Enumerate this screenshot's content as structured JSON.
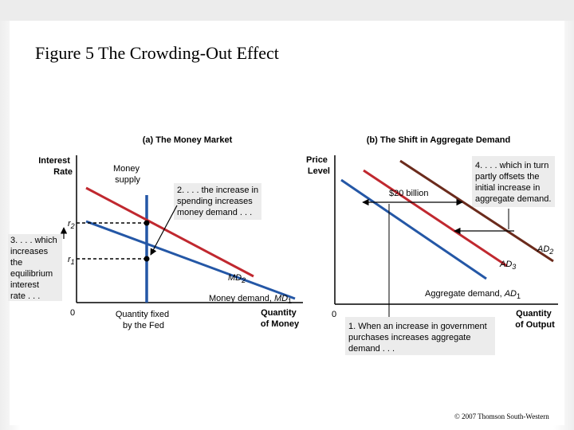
{
  "title": "Figure 5 The Crowding-Out Effect",
  "copyright": "© 2007 Thomson South-Western",
  "colors": {
    "red": "#c0282f",
    "blue": "#2457a6",
    "brown": "#6b2b1c",
    "box": "#ececec"
  },
  "chart_data": [
    {
      "type": "line",
      "title": "(a) The Money Market",
      "ylabel": "Interest Rate",
      "xlabel": "Quantity of Money",
      "origin_label": "0",
      "ytick_labels": [
        "r",
        "2",
        "r",
        "1"
      ],
      "money_supply_label": "Money supply",
      "quantity_fixed_label": "Quantity fixed by the Fed",
      "curves": [
        {
          "name": "MD",
          "sub": "2",
          "color_key": "red"
        },
        {
          "name": "Money demand, MD",
          "sub": "1",
          "color_key": "blue"
        }
      ],
      "annotations": [
        "2. . . . the increase in spending increases money demand . . .",
        "3. . . . which increases the equilibrium interest rate . . ."
      ]
    },
    {
      "type": "line",
      "title": "(b) The Shift in Aggregate Demand",
      "ylabel": "Price Level",
      "xlabel": "Quantity of Output",
      "origin_label": "0",
      "curves": [
        {
          "name": "AD",
          "sub": "2",
          "color_key": "brown"
        },
        {
          "name": "AD",
          "sub": "3",
          "color_key": "red"
        },
        {
          "name": "Aggregate demand, AD",
          "sub": "1",
          "color_key": "blue"
        }
      ],
      "annotations": [
        "$20 billion",
        "4. . . . which in turn partly offsets the initial increase in aggregate demand.",
        "1. When an increase in government purchases increases aggregate demand . . ."
      ]
    }
  ]
}
